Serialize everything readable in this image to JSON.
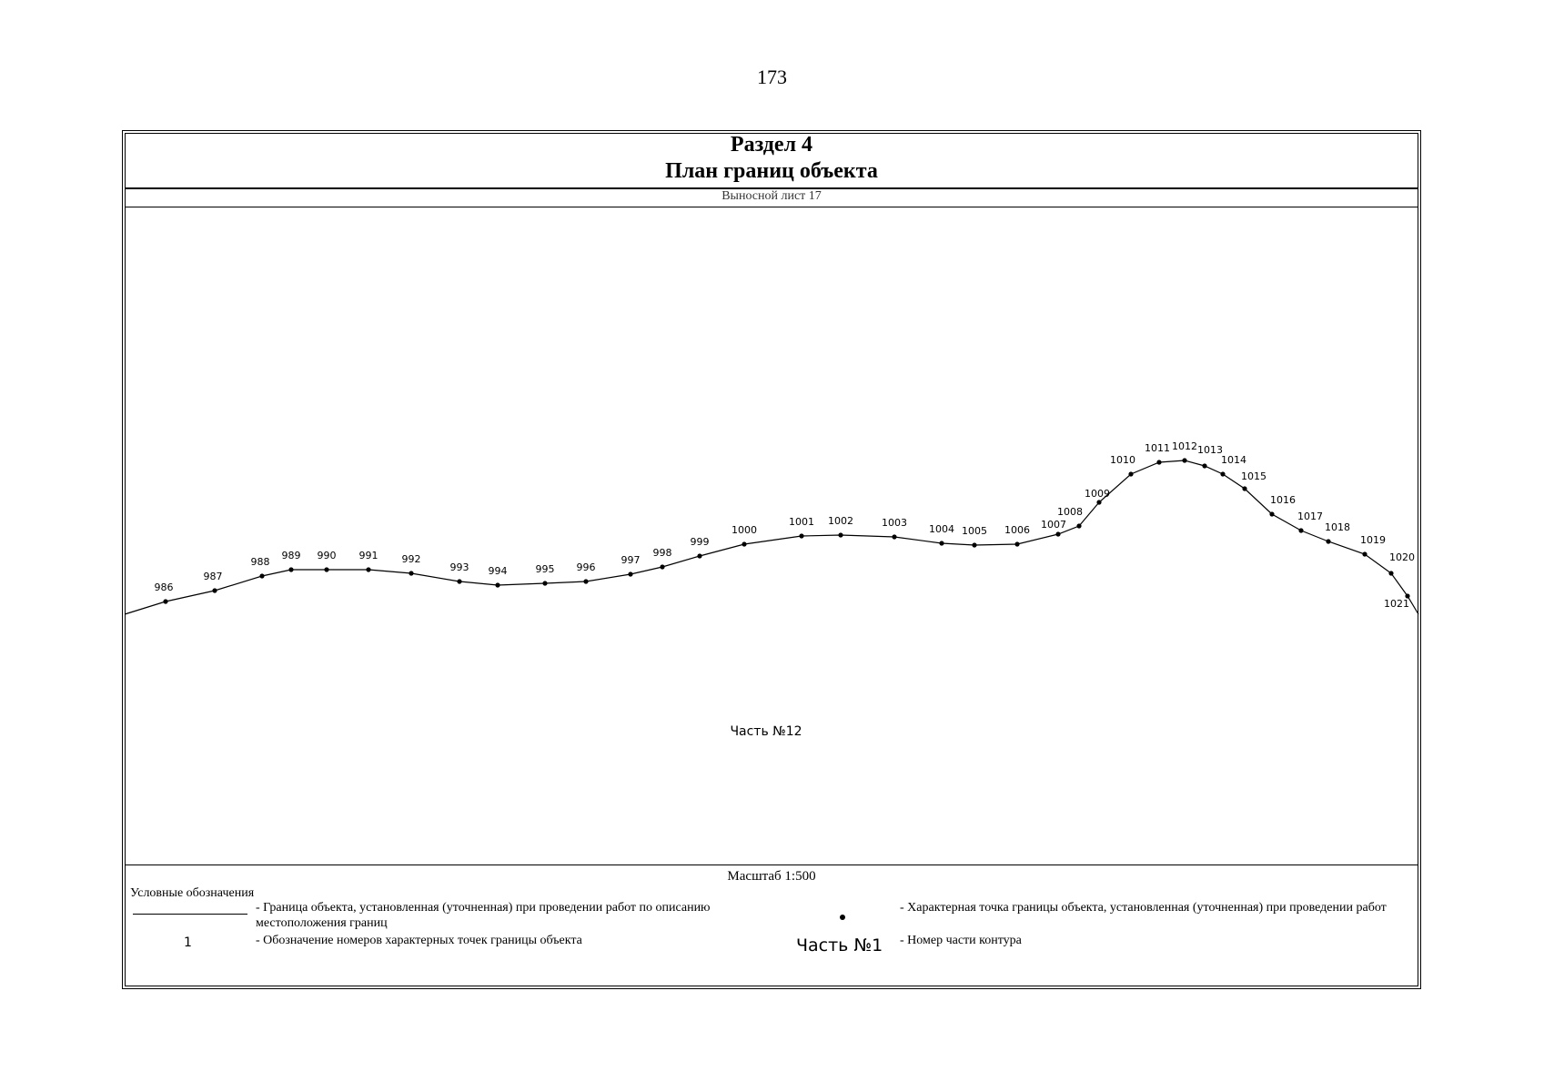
{
  "page_number": "173",
  "header": {
    "section": "Раздел 4",
    "title": "План границ объекта",
    "sheet": "Выносной лист 17"
  },
  "plan": {
    "part_label": "Часть №12",
    "points": [
      {
        "label": "986"
      },
      {
        "label": "987"
      },
      {
        "label": "988"
      },
      {
        "label": "989"
      },
      {
        "label": "990"
      },
      {
        "label": "991"
      },
      {
        "label": "992"
      },
      {
        "label": "993"
      },
      {
        "label": "994"
      },
      {
        "label": "995"
      },
      {
        "label": "996"
      },
      {
        "label": "997"
      },
      {
        "label": "998"
      },
      {
        "label": "999"
      },
      {
        "label": "1000"
      },
      {
        "label": "1001"
      },
      {
        "label": "1002"
      },
      {
        "label": "1003"
      },
      {
        "label": "1004"
      },
      {
        "label": "1005"
      },
      {
        "label": "1006"
      },
      {
        "label": "1007"
      },
      {
        "label": "1008"
      },
      {
        "label": "1009"
      },
      {
        "label": "1010"
      },
      {
        "label": "1011"
      },
      {
        "label": "1012"
      },
      {
        "label": "1013"
      },
      {
        "label": "1014"
      },
      {
        "label": "1015"
      },
      {
        "label": "1016"
      },
      {
        "label": "1017"
      },
      {
        "label": "1018"
      },
      {
        "label": "1019"
      },
      {
        "label": "1020"
      },
      {
        "label": "1021"
      }
    ]
  },
  "footer": {
    "scale": "Масштаб 1:500",
    "legend_title": "Условные обозначения",
    "legend": {
      "boundary_line": "- Граница  объекта, установленная (уточненная) при проведении работ по описанию местоположения границ",
      "point_number_sample": "1",
      "point_number_desc": "- Обозначение номеров характерных точек границы объекта",
      "point_desc": "- Характерная точка границы объекта, установленная (уточненная) при проведении работ",
      "part_sample": "Часть №1",
      "part_desc": "- Номер части контура"
    }
  }
}
